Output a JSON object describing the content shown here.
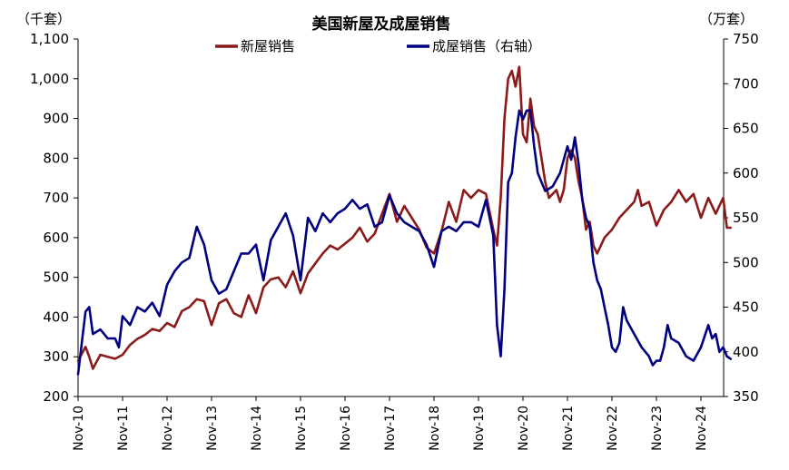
{
  "chart_data": {
    "type": "line",
    "title": "美国新屋及成屋销售",
    "left_unit": "（千套）",
    "right_unit": "（万套）",
    "legend_position": "top",
    "x_ticks": [
      "Nov-10",
      "Nov-11",
      "Nov-12",
      "Nov-13",
      "Nov-14",
      "Nov-15",
      "Nov-16",
      "Nov-17",
      "Nov-18",
      "Nov-19",
      "Nov-20",
      "Nov-21",
      "Nov-22",
      "Nov-23",
      "Nov-24"
    ],
    "y_left": {
      "ticks": [
        "200",
        "300",
        "400",
        "500",
        "600",
        "700",
        "800",
        "900",
        "1,000",
        "1,100"
      ],
      "range": [
        200,
        1100
      ]
    },
    "y_right": {
      "ticks": [
        "350",
        "400",
        "450",
        "500",
        "550",
        "600",
        "650",
        "700",
        "750"
      ],
      "range": [
        350,
        750
      ]
    },
    "grid": false,
    "series": [
      {
        "name": "新屋销售",
        "axis": "left",
        "color": "#8B1A1A",
        "points": [
          [
            "2010-11",
            290
          ],
          [
            "2011-01",
            325
          ],
          [
            "2011-02",
            300
          ],
          [
            "2011-03",
            270
          ],
          [
            "2011-05",
            305
          ],
          [
            "2011-07",
            300
          ],
          [
            "2011-09",
            295
          ],
          [
            "2011-11",
            305
          ],
          [
            "2012-01",
            330
          ],
          [
            "2012-03",
            345
          ],
          [
            "2012-05",
            355
          ],
          [
            "2012-07",
            370
          ],
          [
            "2012-09",
            365
          ],
          [
            "2012-11",
            385
          ],
          [
            "2013-01",
            375
          ],
          [
            "2013-03",
            415
          ],
          [
            "2013-05",
            425
          ],
          [
            "2013-07",
            445
          ],
          [
            "2013-09",
            440
          ],
          [
            "2013-11",
            380
          ],
          [
            "2014-01",
            435
          ],
          [
            "2014-03",
            445
          ],
          [
            "2014-05",
            410
          ],
          [
            "2014-07",
            400
          ],
          [
            "2014-09",
            455
          ],
          [
            "2014-11",
            410
          ],
          [
            "2015-01",
            475
          ],
          [
            "2015-03",
            495
          ],
          [
            "2015-05",
            500
          ],
          [
            "2015-07",
            475
          ],
          [
            "2015-09",
            515
          ],
          [
            "2015-11",
            460
          ],
          [
            "2016-01",
            510
          ],
          [
            "2016-03",
            535
          ],
          [
            "2016-05",
            560
          ],
          [
            "2016-07",
            580
          ],
          [
            "2016-09",
            570
          ],
          [
            "2016-11",
            585
          ],
          [
            "2017-01",
            600
          ],
          [
            "2017-03",
            625
          ],
          [
            "2017-05",
            590
          ],
          [
            "2017-07",
            610
          ],
          [
            "2017-09",
            660
          ],
          [
            "2017-11",
            710
          ],
          [
            "2018-01",
            640
          ],
          [
            "2018-03",
            680
          ],
          [
            "2018-05",
            650
          ],
          [
            "2018-07",
            620
          ],
          [
            "2018-09",
            575
          ],
          [
            "2018-11",
            560
          ],
          [
            "2019-01",
            615
          ],
          [
            "2019-03",
            690
          ],
          [
            "2019-05",
            640
          ],
          [
            "2019-07",
            720
          ],
          [
            "2019-09",
            700
          ],
          [
            "2019-11",
            720
          ],
          [
            "2020-01",
            710
          ],
          [
            "2020-03",
            620
          ],
          [
            "2020-04",
            580
          ],
          [
            "2020-05",
            700
          ],
          [
            "2020-06",
            900
          ],
          [
            "2020-07",
            1000
          ],
          [
            "2020-08",
            1020
          ],
          [
            "2020-09",
            980
          ],
          [
            "2020-10",
            1030
          ],
          [
            "2020-11",
            860
          ],
          [
            "2020-12",
            840
          ],
          [
            "2021-01",
            950
          ],
          [
            "2021-02",
            880
          ],
          [
            "2021-03",
            860
          ],
          [
            "2021-04",
            800
          ],
          [
            "2021-05",
            740
          ],
          [
            "2021-06",
            700
          ],
          [
            "2021-07",
            710
          ],
          [
            "2021-08",
            720
          ],
          [
            "2021-09",
            690
          ],
          [
            "2021-10",
            720
          ],
          [
            "2021-11",
            800
          ],
          [
            "2021-12",
            820
          ],
          [
            "2022-01",
            800
          ],
          [
            "2022-02",
            740
          ],
          [
            "2022-03",
            700
          ],
          [
            "2022-04",
            620
          ],
          [
            "2022-05",
            640
          ],
          [
            "2022-06",
            580
          ],
          [
            "2022-07",
            560
          ],
          [
            "2022-09",
            600
          ],
          [
            "2022-11",
            620
          ],
          [
            "2023-01",
            650
          ],
          [
            "2023-03",
            670
          ],
          [
            "2023-05",
            690
          ],
          [
            "2023-06",
            720
          ],
          [
            "2023-07",
            680
          ],
          [
            "2023-09",
            690
          ],
          [
            "2023-11",
            630
          ],
          [
            "2024-01",
            670
          ],
          [
            "2024-03",
            690
          ],
          [
            "2024-05",
            720
          ],
          [
            "2024-07",
            690
          ],
          [
            "2024-09",
            710
          ],
          [
            "2024-11",
            650
          ],
          [
            "2025-01",
            700
          ],
          [
            "2025-03",
            660
          ],
          [
            "2025-05",
            700
          ],
          [
            "2025-06",
            625
          ],
          [
            "2025-07",
            625
          ]
        ]
      },
      {
        "name": "成屋销售（右轴）",
        "axis": "right",
        "color": "#000080",
        "points": [
          [
            "2010-11",
            375
          ],
          [
            "2011-01",
            445
          ],
          [
            "2011-02",
            450
          ],
          [
            "2011-03",
            420
          ],
          [
            "2011-05",
            425
          ],
          [
            "2011-07",
            415
          ],
          [
            "2011-09",
            415
          ],
          [
            "2011-10",
            405
          ],
          [
            "2011-11",
            440
          ],
          [
            "2012-01",
            430
          ],
          [
            "2012-03",
            450
          ],
          [
            "2012-05",
            445
          ],
          [
            "2012-07",
            455
          ],
          [
            "2012-09",
            440
          ],
          [
            "2012-11",
            475
          ],
          [
            "2013-01",
            490
          ],
          [
            "2013-03",
            500
          ],
          [
            "2013-05",
            505
          ],
          [
            "2013-07",
            540
          ],
          [
            "2013-09",
            520
          ],
          [
            "2013-11",
            480
          ],
          [
            "2014-01",
            465
          ],
          [
            "2014-03",
            470
          ],
          [
            "2014-05",
            490
          ],
          [
            "2014-07",
            510
          ],
          [
            "2014-09",
            510
          ],
          [
            "2014-11",
            520
          ],
          [
            "2015-01",
            480
          ],
          [
            "2015-03",
            525
          ],
          [
            "2015-05",
            540
          ],
          [
            "2015-07",
            555
          ],
          [
            "2015-09",
            530
          ],
          [
            "2015-11",
            480
          ],
          [
            "2016-01",
            550
          ],
          [
            "2016-03",
            535
          ],
          [
            "2016-05",
            555
          ],
          [
            "2016-07",
            545
          ],
          [
            "2016-09",
            555
          ],
          [
            "2016-11",
            560
          ],
          [
            "2017-01",
            570
          ],
          [
            "2017-03",
            560
          ],
          [
            "2017-05",
            565
          ],
          [
            "2017-07",
            540
          ],
          [
            "2017-09",
            545
          ],
          [
            "2017-11",
            575
          ],
          [
            "2018-01",
            555
          ],
          [
            "2018-03",
            545
          ],
          [
            "2018-05",
            540
          ],
          [
            "2018-07",
            535
          ],
          [
            "2018-09",
            520
          ],
          [
            "2018-11",
            495
          ],
          [
            "2019-01",
            535
          ],
          [
            "2019-03",
            540
          ],
          [
            "2019-05",
            535
          ],
          [
            "2019-07",
            545
          ],
          [
            "2019-09",
            545
          ],
          [
            "2019-11",
            540
          ],
          [
            "2020-01",
            570
          ],
          [
            "2020-03",
            530
          ],
          [
            "2020-04",
            430
          ],
          [
            "2020-05",
            395
          ],
          [
            "2020-06",
            470
          ],
          [
            "2020-07",
            590
          ],
          [
            "2020-08",
            600
          ],
          [
            "2020-09",
            640
          ],
          [
            "2020-10",
            670
          ],
          [
            "2020-11",
            660
          ],
          [
            "2020-12",
            670
          ],
          [
            "2021-01",
            670
          ],
          [
            "2021-02",
            630
          ],
          [
            "2021-03",
            600
          ],
          [
            "2021-04",
            590
          ],
          [
            "2021-05",
            580
          ],
          [
            "2021-07",
            585
          ],
          [
            "2021-09",
            600
          ],
          [
            "2021-11",
            630
          ],
          [
            "2021-12",
            615
          ],
          [
            "2022-01",
            640
          ],
          [
            "2022-02",
            610
          ],
          [
            "2022-03",
            570
          ],
          [
            "2022-04",
            550
          ],
          [
            "2022-05",
            540
          ],
          [
            "2022-06",
            500
          ],
          [
            "2022-07",
            480
          ],
          [
            "2022-08",
            470
          ],
          [
            "2022-09",
            450
          ],
          [
            "2022-10",
            430
          ],
          [
            "2022-11",
            405
          ],
          [
            "2022-12",
            400
          ],
          [
            "2023-01",
            410
          ],
          [
            "2023-02",
            450
          ],
          [
            "2023-03",
            435
          ],
          [
            "2023-05",
            420
          ],
          [
            "2023-07",
            405
          ],
          [
            "2023-09",
            395
          ],
          [
            "2023-10",
            385
          ],
          [
            "2023-11",
            390
          ],
          [
            "2023-12",
            390
          ],
          [
            "2024-01",
            405
          ],
          [
            "2024-02",
            430
          ],
          [
            "2024-03",
            415
          ],
          [
            "2024-05",
            410
          ],
          [
            "2024-07",
            395
          ],
          [
            "2024-09",
            390
          ],
          [
            "2024-11",
            405
          ],
          [
            "2025-01",
            430
          ],
          [
            "2025-02",
            415
          ],
          [
            "2025-03",
            420
          ],
          [
            "2025-04",
            400
          ],
          [
            "2025-05",
            405
          ],
          [
            "2025-06",
            395
          ],
          [
            "2025-07",
            392
          ]
        ]
      }
    ]
  }
}
